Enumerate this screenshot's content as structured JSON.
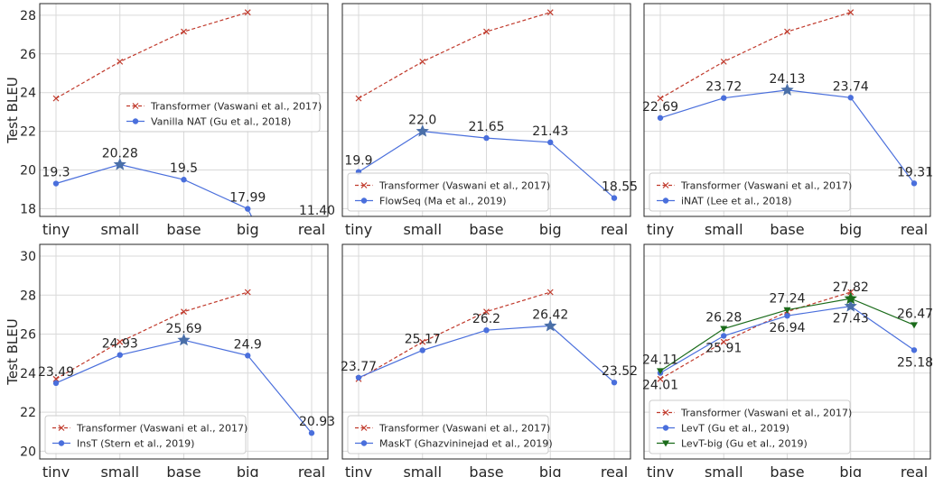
{
  "chart_data": [
    {
      "type": "line",
      "ylabel": "Test BLEU",
      "categories": [
        "tiny",
        "small",
        "base",
        "big",
        "real"
      ],
      "ylim": [
        17.6,
        28.6
      ],
      "yticks": [
        18,
        20,
        22,
        24,
        26,
        28
      ],
      "grid": true,
      "legend_position": "center-right",
      "series": [
        {
          "name": "Transformer (Vaswani et al., 2017)",
          "values": [
            23.7,
            25.6,
            27.15,
            28.15,
            null
          ],
          "color": "#c0392b",
          "dashed": true,
          "marker": "x",
          "show_labels": false
        },
        {
          "name": "Vanilla NAT (Gu et al., 2018)",
          "values": [
            19.3,
            20.28,
            19.5,
            17.99,
            11.4
          ],
          "labels": [
            "19.3",
            "20.28",
            "19.5",
            "17.99",
            "11.40"
          ],
          "color": "#4a6fdc",
          "marker": "o",
          "star_index": 1,
          "show_labels": true
        }
      ]
    },
    {
      "type": "line",
      "ylabel": "",
      "categories": [
        "tiny",
        "small",
        "base",
        "big",
        "real"
      ],
      "ylim": [
        17.6,
        28.6
      ],
      "yticks": [],
      "grid": true,
      "legend_position": "lower-center",
      "series": [
        {
          "name": "Transformer (Vaswani et al., 2017)",
          "values": [
            23.7,
            25.6,
            27.15,
            28.15,
            null
          ],
          "color": "#c0392b",
          "dashed": true,
          "marker": "x",
          "show_labels": false
        },
        {
          "name": "FlowSeq (Ma et al., 2019)",
          "values": [
            19.9,
            22.0,
            21.65,
            21.43,
            18.55
          ],
          "labels": [
            "19.9",
            "22.0",
            "21.65",
            "21.43",
            "18.55"
          ],
          "color": "#4a6fdc",
          "marker": "o",
          "star_index": 1,
          "show_labels": true
        }
      ]
    },
    {
      "type": "line",
      "ylabel": "",
      "categories": [
        "tiny",
        "small",
        "base",
        "big",
        "real"
      ],
      "ylim": [
        17.6,
        28.6
      ],
      "yticks": [],
      "grid": true,
      "legend_position": "lower-center",
      "series": [
        {
          "name": "Transformer (Vaswani et al., 2017)",
          "values": [
            23.7,
            25.6,
            27.15,
            28.15,
            null
          ],
          "color": "#c0392b",
          "dashed": true,
          "marker": "x",
          "show_labels": false
        },
        {
          "name": "iNAT (Lee et al., 2018)",
          "values": [
            22.69,
            23.72,
            24.13,
            23.74,
            19.31
          ],
          "labels": [
            "22.69",
            "23.72",
            "24.13",
            "23.74",
            "19.31"
          ],
          "color": "#4a6fdc",
          "marker": "o",
          "star_index": 2,
          "show_labels": true
        }
      ]
    },
    {
      "type": "line",
      "ylabel": "Test BLEU",
      "categories": [
        "tiny",
        "small",
        "base",
        "big",
        "real"
      ],
      "ylim": [
        19.6,
        30.6
      ],
      "yticks": [
        20,
        22,
        24,
        26,
        28,
        30
      ],
      "grid": true,
      "legend_position": "lower-center",
      "series": [
        {
          "name": "Transformer (Vaswani et al., 2017)",
          "values": [
            23.7,
            25.6,
            27.15,
            28.15,
            null
          ],
          "color": "#c0392b",
          "dashed": true,
          "marker": "x",
          "show_labels": false
        },
        {
          "name": "InsT (Stern et al., 2019)",
          "values": [
            23.49,
            24.93,
            25.69,
            24.9,
            20.93
          ],
          "labels": [
            "23.49",
            "24.93",
            "25.69",
            "24.9",
            "20.93"
          ],
          "color": "#4a6fdc",
          "marker": "o",
          "star_index": 2,
          "show_labels": true
        }
      ]
    },
    {
      "type": "line",
      "ylabel": "",
      "categories": [
        "tiny",
        "small",
        "base",
        "big",
        "real"
      ],
      "ylim": [
        19.6,
        30.6
      ],
      "yticks": [],
      "grid": true,
      "legend_position": "lower-center",
      "series": [
        {
          "name": "Transformer (Vaswani et al., 2017)",
          "values": [
            23.7,
            25.6,
            27.15,
            28.15,
            null
          ],
          "color": "#c0392b",
          "dashed": true,
          "marker": "x",
          "show_labels": false
        },
        {
          "name": "MaskT (Ghazvininejad et al., 2019)",
          "values": [
            23.77,
            25.17,
            26.2,
            26.42,
            23.52
          ],
          "labels": [
            "23.77",
            "25.17",
            "26.2",
            "26.42",
            "23.52"
          ],
          "color": "#4a6fdc",
          "marker": "o",
          "star_index": 3,
          "show_labels": true
        }
      ]
    },
    {
      "type": "line",
      "ylabel": "",
      "categories": [
        "tiny",
        "small",
        "base",
        "big",
        "real"
      ],
      "ylim": [
        19.6,
        30.6
      ],
      "yticks": [],
      "grid": true,
      "legend_position": "lower-center",
      "series": [
        {
          "name": "Transformer (Vaswani et al., 2017)",
          "values": [
            23.7,
            25.6,
            27.15,
            28.15,
            null
          ],
          "color": "#c0392b",
          "dashed": true,
          "marker": "x",
          "show_labels": false
        },
        {
          "name": "LevT (Gu et al., 2019)",
          "values": [
            24.01,
            25.91,
            26.94,
            27.43,
            25.18
          ],
          "labels": [
            "24.01",
            "25.91",
            "26.94",
            "27.43",
            "25.18"
          ],
          "color": "#4a6fdc",
          "marker": "o",
          "star_index": 3,
          "label_side": "below",
          "show_labels": true
        },
        {
          "name": "LevT-big (Gu et al., 2019)",
          "values": [
            24.11,
            26.28,
            27.24,
            27.82,
            26.47
          ],
          "labels": [
            "24.11",
            "26.28",
            "27.24",
            "27.82",
            "26.47"
          ],
          "color": "#1a6b1a",
          "marker": "v",
          "star_index": 3,
          "label_side": "above",
          "show_labels": true
        }
      ]
    }
  ]
}
